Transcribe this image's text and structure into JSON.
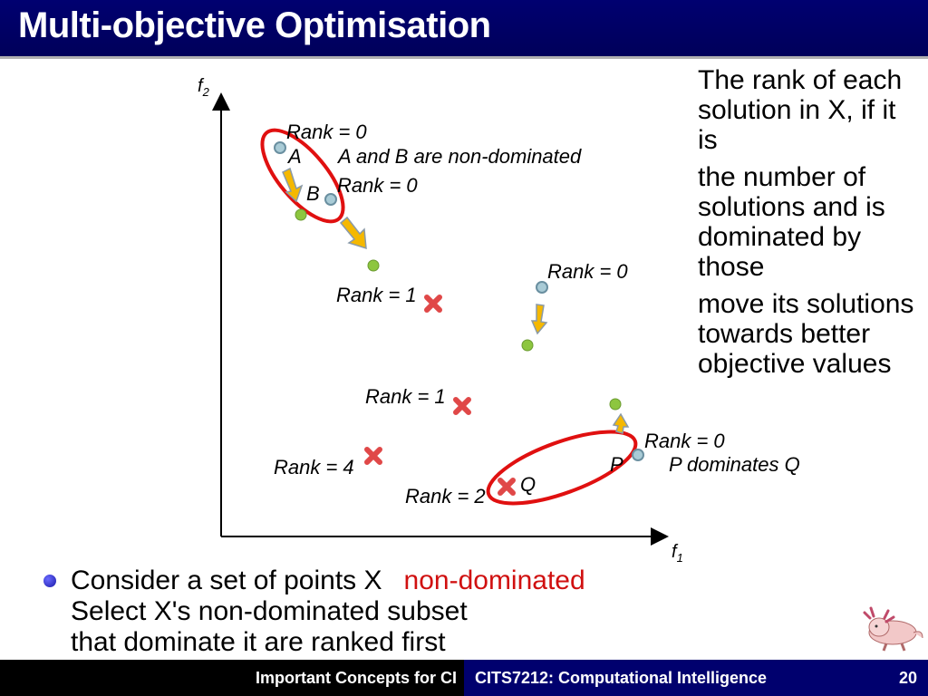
{
  "slide": {
    "title": "Multi-objective Optimisation",
    "page_number": "20"
  },
  "diagram": {
    "axis_x_label": "f",
    "axis_x_sub": "1",
    "axis_y_label": "f",
    "axis_y_sub": "2",
    "labels": {
      "rank_a": "Rank = 0",
      "point_a": "A",
      "ab_note": "A and B are non-dominated",
      "point_b": "B",
      "rank_b": "Rank = 0",
      "rank_mid": "Rank = 0",
      "rank_1a": "Rank = 1",
      "rank_1b": "Rank = 1",
      "rank_p": "Rank = 0",
      "point_p": "P",
      "pq_note": "P dominates Q",
      "rank_4": "Rank = 4",
      "rank_2": "Rank = 2",
      "point_q": "Q"
    },
    "colors": {
      "non_dominated_point": "#a9cbd6",
      "moved_point": "#8dc63f",
      "dominated_marker": "#e04848",
      "arrow": "#f5b800",
      "ellipse": "#e01010"
    }
  },
  "bullet": {
    "line1_layers": [
      "Consider a set of points X",
      "Select X's non-dominated subset",
      "The rank of each solution in X, if it is"
    ],
    "line1_red": "non-dominated",
    "line2_layers": [
      "that dominate it are ranked first",
      "move its solutions towards better objective values",
      "the number of solutions and is dominated by those"
    ]
  },
  "footer": {
    "left": "Important Concepts for CI",
    "course": "CITS7212: Computational Intelligence"
  }
}
